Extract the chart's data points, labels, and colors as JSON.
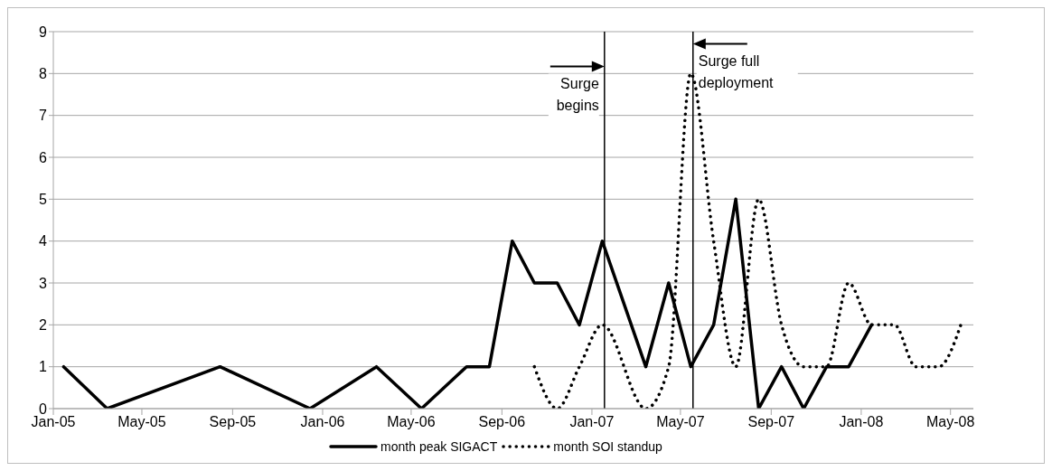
{
  "chart_data": {
    "type": "line",
    "xlim": [
      "2005-01",
      "2008-06"
    ],
    "xticks": [
      {
        "value": "2005-01",
        "label": "Jan-05"
      },
      {
        "value": "2005-05",
        "label": "May-05"
      },
      {
        "value": "2005-09",
        "label": "Sep-05"
      },
      {
        "value": "2006-01",
        "label": "Jan-06"
      },
      {
        "value": "2006-05",
        "label": "May-06"
      },
      {
        "value": "2006-09",
        "label": "Sep-06"
      },
      {
        "value": "2007-01",
        "label": "Jan-07"
      },
      {
        "value": "2007-05",
        "label": "May-07"
      },
      {
        "value": "2007-09",
        "label": "Sep-07"
      },
      {
        "value": "2008-01",
        "label": "Jan-08"
      },
      {
        "value": "2008-05",
        "label": "May-08"
      }
    ],
    "ylim": [
      0,
      9
    ],
    "yticks": [
      0,
      1,
      2,
      3,
      4,
      5,
      6,
      7,
      8,
      9
    ],
    "grid": "y",
    "legend": "bottom",
    "marker": "none",
    "series": [
      {
        "name": "month peak SIGACT",
        "color": "#000000",
        "line_style": "solid",
        "x": [
          "2005-01-15",
          "2005-03-15",
          "2005-08-15",
          "2005-12-15",
          "2006-03-15",
          "2006-05-15",
          "2006-07-15",
          "2006-08-15",
          "2006-09-15",
          "2006-10-15",
          "2006-11-15",
          "2006-12-15",
          "2007-01-15",
          "2007-03-15",
          "2007-04-15",
          "2007-05-15",
          "2007-06-15",
          "2007-07-15",
          "2007-08-15",
          "2007-09-15",
          "2007-10-15",
          "2007-11-15",
          "2007-12-15",
          "2008-01-15"
        ],
        "values": [
          1,
          0,
          1,
          0,
          1,
          0,
          1,
          1,
          4,
          3,
          3,
          2,
          4,
          1,
          3,
          1,
          2,
          5,
          0,
          1,
          0,
          1,
          1,
          2
        ]
      },
      {
        "name": "month SOI standup",
        "color": "#000000",
        "line_style": "dotted",
        "x": [
          "2006-10-15",
          "2006-11-15",
          "2006-12-15",
          "2007-01-15",
          "2007-03-15",
          "2007-04-15",
          "2007-05-15",
          "2007-06-15",
          "2007-07-15",
          "2007-08-15",
          "2007-09-15",
          "2007-10-15",
          "2007-11-15",
          "2007-12-15",
          "2008-01-15",
          "2008-02-15",
          "2008-03-15",
          "2008-04-15",
          "2008-05-15"
        ],
        "values": [
          1,
          0,
          1,
          2,
          0,
          1,
          8,
          4,
          1,
          5,
          2,
          1,
          1,
          3,
          2,
          2,
          1,
          1,
          2
        ]
      }
    ],
    "ref_lines": [
      {
        "axis": "x",
        "value": "2007-01-18",
        "label": "Surge begins",
        "color": "#000000"
      },
      {
        "axis": "x",
        "value": "2007-05-18",
        "label": "Surge full deployment",
        "color": "#000000"
      }
    ]
  }
}
